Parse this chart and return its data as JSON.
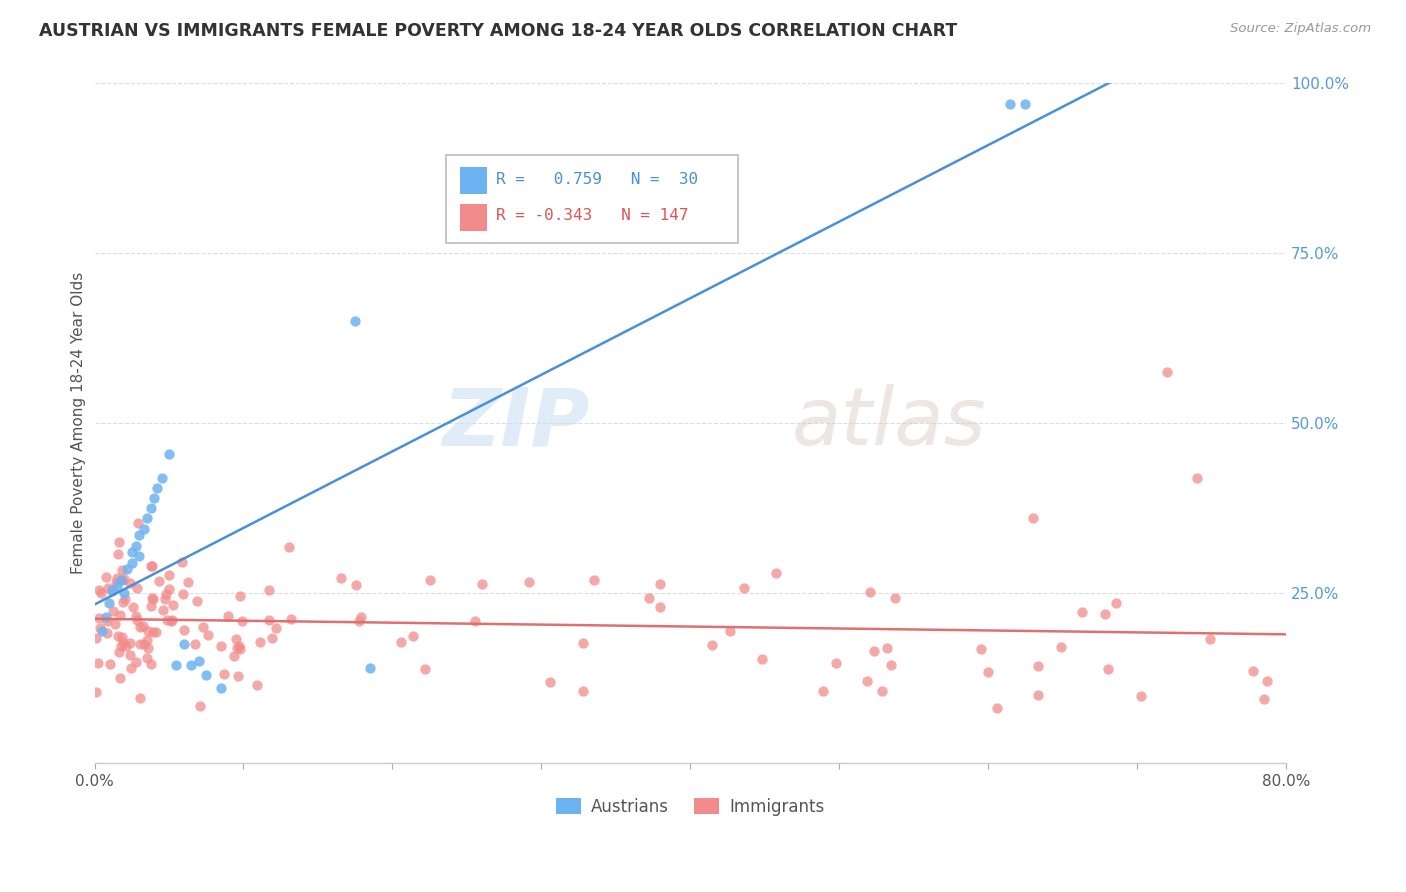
{
  "title": "AUSTRIAN VS IMMIGRANTS FEMALE POVERTY AMONG 18-24 YEAR OLDS CORRELATION CHART",
  "source": "Source: ZipAtlas.com",
  "ylabel": "Female Poverty Among 18-24 Year Olds",
  "xlim": [
    0.0,
    0.8
  ],
  "ylim": [
    0.0,
    1.0
  ],
  "ytick_vals": [
    0.0,
    0.25,
    0.5,
    0.75,
    1.0
  ],
  "ytick_labels": [
    "",
    "25.0%",
    "50.0%",
    "75.0%",
    "100.0%"
  ],
  "xtick_vals": [
    0.0,
    0.1,
    0.2,
    0.3,
    0.4,
    0.5,
    0.6,
    0.7,
    0.8
  ],
  "xtick_labels": [
    "0.0%",
    "",
    "",
    "",
    "",
    "",
    "",
    "",
    "80.0%"
  ],
  "austrians_R": 0.759,
  "austrians_N": 30,
  "immigrants_R": -0.343,
  "immigrants_N": 147,
  "austrian_color": "#6db3f2",
  "immigrant_color": "#f28b8b",
  "regression_blue": "#4a90d9",
  "regression_pink": "#e07070",
  "watermark_zip": "ZIP",
  "watermark_atlas": "atlas",
  "background_color": "#ffffff",
  "grid_color": "#dddddd",
  "title_color": "#333333",
  "source_color": "#999999",
  "ylabel_color": "#555555",
  "ytick_color": "#5599dd",
  "xtick_color": "#555555",
  "legend_border_color": "#bbbbbb",
  "legend_blue_text_color": "#4a90d9",
  "legend_pink_text_color": "#dd5555"
}
